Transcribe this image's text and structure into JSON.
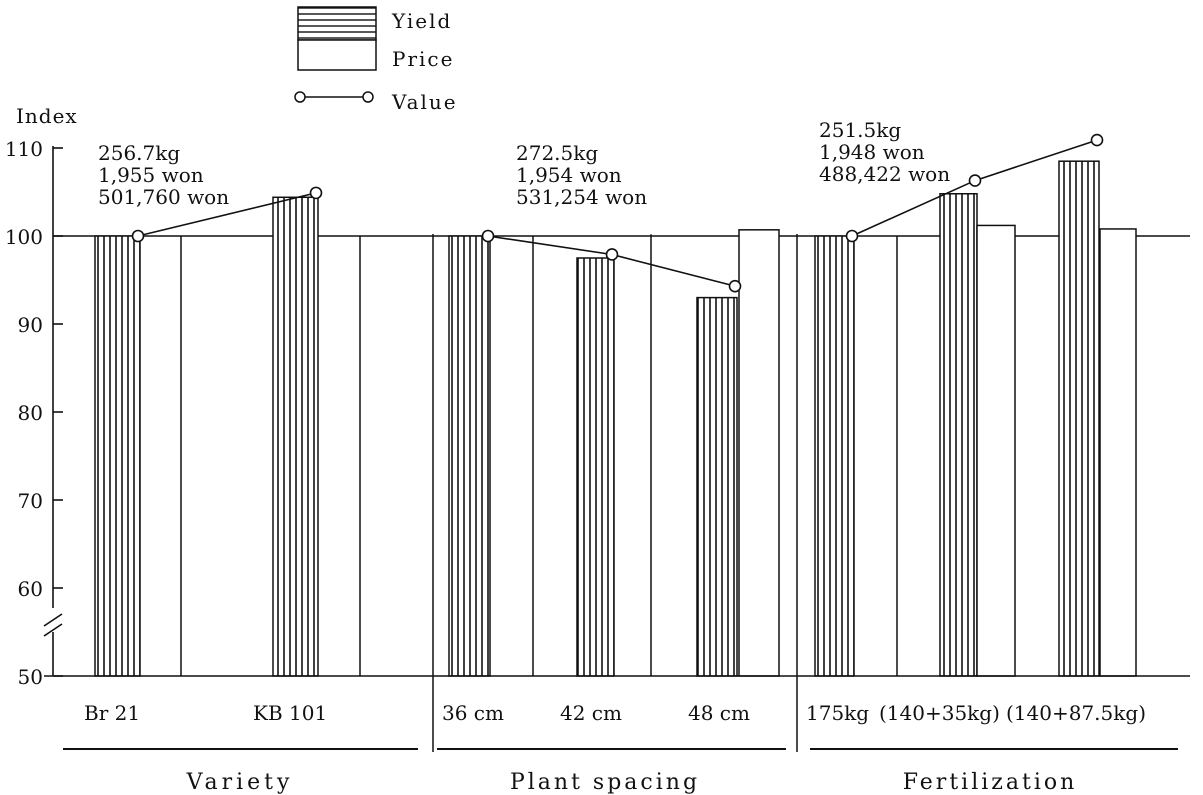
{
  "chart_data": {
    "type": "bar",
    "ylabel": "Index",
    "ylim": [
      50,
      113
    ],
    "yticks": [
      50,
      60,
      70,
      80,
      90,
      100,
      110
    ],
    "axis_break": true,
    "reference_line": 100,
    "legend": {
      "position": "top-center",
      "items": [
        {
          "name": "Yield",
          "style": "vertical-hatch"
        },
        {
          "name": "Price",
          "style": "open"
        },
        {
          "name": "Value",
          "style": "line-circle"
        }
      ]
    },
    "groups": [
      {
        "label": "Variety",
        "treatments": [
          {
            "label": "Br 21",
            "yield": 100,
            "price": 100,
            "value": 100
          },
          {
            "label": "KB 101",
            "yield": 104.4,
            "price": 100,
            "value": 104.9
          }
        ],
        "annotation": [
          "256.7kg",
          "1,955 won",
          "501,760 won"
        ]
      },
      {
        "label": "Plant spacing",
        "treatments": [
          {
            "label": "36 cm",
            "yield": 100,
            "price": 100,
            "value": 100
          },
          {
            "label": "42 cm",
            "yield": 97.5,
            "price": 100.2,
            "value": 97.9
          },
          {
            "label": "48 cm",
            "yield": 93.0,
            "price": 100.7,
            "value": 94.3
          }
        ],
        "annotation": [
          "272.5kg",
          "1,954 won",
          "531,254 won"
        ]
      },
      {
        "label": "Fertilization",
        "treatments": [
          {
            "label": "175kg",
            "yield": 100,
            "price": 100,
            "value": 100
          },
          {
            "label": "(140+35kg)",
            "yield": 104.8,
            "price": 101.2,
            "value": 106.3
          },
          {
            "label": "(140+87.5kg)",
            "yield": 108.5,
            "price": 100.8,
            "value": 110.9
          }
        ],
        "annotation": [
          "251.5kg",
          "1,948 won",
          "488,422 won"
        ]
      }
    ]
  }
}
